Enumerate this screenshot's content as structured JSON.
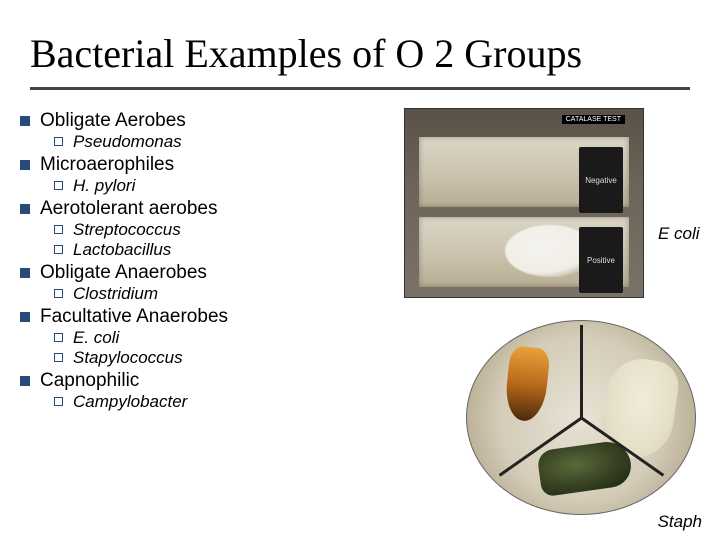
{
  "title": "Bacterial Examples of O 2 Groups",
  "bullets": [
    {
      "label": "Obligate Aerobes",
      "subs": [
        "Pseudomonas"
      ]
    },
    {
      "label": "Microaerophiles",
      "subs": [
        "H. pylori"
      ]
    },
    {
      "label": "Aerotolerant aerobes",
      "subs": [
        "Streptococcus",
        "Lactobacillus"
      ]
    },
    {
      "label": "Obligate Anaerobes",
      "subs": [
        "Clostridium"
      ]
    },
    {
      "label": "Facultative Anaerobes",
      "subs": [
        "E. coli",
        "Stapylococcus"
      ]
    },
    {
      "label": "Capnophilic",
      "subs": [
        "Campylobacter"
      ]
    }
  ],
  "image1": {
    "tag": "CATALASE TEST",
    "neg": "Negative",
    "pos": "Positive",
    "caption": "E coli"
  },
  "image2": {
    "caption": "Staph"
  },
  "colors": {
    "bullet": "#284a7a",
    "underline": "#444444",
    "title": "#000000"
  }
}
